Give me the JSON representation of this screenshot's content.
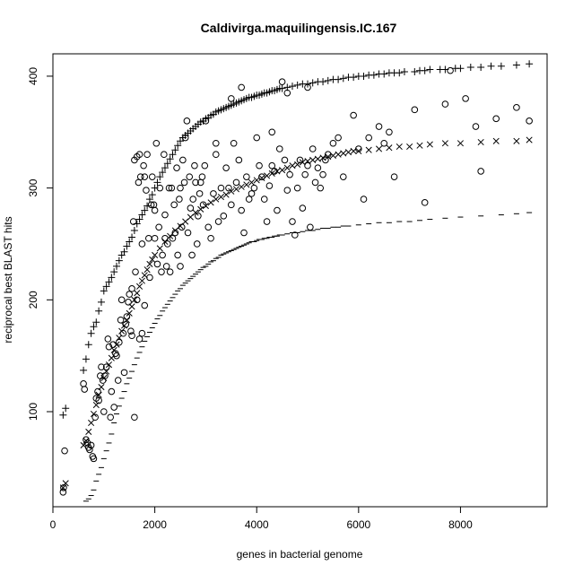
{
  "chart_data": {
    "type": "scatter",
    "title": "Caldivirga.maquilingensis.IC.167",
    "xlabel": "genes in bacterial genome",
    "ylabel": "reciprocal best BLAST hits",
    "xlim": [
      0,
      9700
    ],
    "ylim": [
      15,
      420
    ],
    "x_ticks": [
      0,
      2000,
      4000,
      6000,
      8000
    ],
    "y_ticks": [
      100,
      200,
      300,
      400
    ],
    "x_tick_labels": [
      "0",
      "2000",
      "4000",
      "6000",
      "8000"
    ],
    "y_tick_labels": [
      "100",
      "200",
      "300",
      "400"
    ],
    "grid": false,
    "legend": "none",
    "color": "#000000",
    "series": [
      {
        "marker": "plus",
        "x": [
          200,
          250,
          600,
          650,
          700,
          750,
          800,
          850,
          900,
          950,
          1000,
          1050,
          1100,
          1150,
          1200,
          1250,
          1300,
          1350,
          1400,
          1450,
          1500,
          1550,
          1600,
          1650,
          1700,
          1750,
          1800,
          1850,
          1900,
          1950,
          2000,
          2050,
          2100,
          2150,
          2200,
          2250,
          2300,
          2350,
          2400,
          2450,
          2500,
          2550,
          2600,
          2650,
          2700,
          2750,
          2800,
          2850,
          2900,
          2950,
          3000,
          3050,
          3100,
          3150,
          3200,
          3250,
          3300,
          3350,
          3400,
          3450,
          3500,
          3550,
          3600,
          3650,
          3700,
          3750,
          3800,
          3850,
          3900,
          3950,
          4000,
          4050,
          4100,
          4150,
          4200,
          4250,
          4300,
          4350,
          4400,
          4450,
          4500,
          4600,
          4700,
          4800,
          4900,
          5000,
          5100,
          5200,
          5300,
          5400,
          5500,
          5600,
          5700,
          5800,
          5900,
          6000,
          6100,
          6200,
          6300,
          6400,
          6500,
          6600,
          6700,
          6800,
          6900,
          7100,
          7200,
          7300,
          7400,
          7600,
          7700,
          7900,
          8000,
          8200,
          8400,
          8600,
          8800,
          9100,
          9350
        ],
        "y": [
          97,
          103,
          137,
          147,
          160,
          170,
          176,
          180,
          190,
          198,
          208,
          212,
          216,
          220,
          225,
          230,
          235,
          240,
          243,
          248,
          252,
          256,
          262,
          268,
          272,
          276,
          280,
          284,
          290,
          294,
          300,
          305,
          310,
          314,
          318,
          322,
          326,
          330,
          334,
          338,
          342,
          345,
          347,
          349,
          351,
          353,
          355,
          357,
          359,
          360,
          362,
          363,
          365,
          366,
          368,
          369,
          370,
          371,
          372,
          373,
          374,
          375,
          376,
          377,
          378,
          379,
          380,
          381,
          381,
          382,
          383,
          383,
          384,
          385,
          385,
          386,
          387,
          387,
          388,
          389,
          389,
          390,
          391,
          392,
          393,
          393,
          394,
          395,
          395,
          396,
          397,
          397,
          398,
          399,
          399,
          400,
          400,
          401,
          401,
          402,
          402,
          403,
          403,
          403,
          404,
          404,
          405,
          405,
          406,
          406,
          406,
          407,
          407,
          408,
          408,
          409,
          409,
          410,
          411
        ]
      },
      {
        "marker": "x",
        "x": [
          200,
          250,
          600,
          650,
          700,
          750,
          800,
          850,
          900,
          950,
          1000,
          1050,
          1100,
          1150,
          1200,
          1250,
          1300,
          1350,
          1400,
          1450,
          1500,
          1550,
          1600,
          1650,
          1700,
          1750,
          1800,
          1850,
          1900,
          1950,
          2000,
          2100,
          2200,
          2300,
          2400,
          2500,
          2600,
          2700,
          2800,
          2900,
          3000,
          3100,
          3200,
          3300,
          3400,
          3500,
          3600,
          3700,
          3800,
          3900,
          4000,
          4100,
          4200,
          4300,
          4400,
          4500,
          4600,
          4700,
          4800,
          4900,
          5000,
          5100,
          5200,
          5300,
          5400,
          5500,
          5600,
          5700,
          5800,
          5900,
          6000,
          6200,
          6400,
          6600,
          6800,
          7000,
          7200,
          7400,
          7700,
          8000,
          8400,
          8700,
          9100,
          9350
        ],
        "y": [
          32,
          36,
          70,
          74,
          82,
          90,
          98,
          106,
          115,
          122,
          130,
          136,
          142,
          148,
          155,
          160,
          166,
          172,
          177,
          182,
          188,
          194,
          200,
          206,
          212,
          217,
          222,
          227,
          232,
          236,
          240,
          246,
          252,
          257,
          262,
          266,
          270,
          274,
          278,
          281,
          284,
          287,
          290,
          292,
          294,
          297,
          299,
          301,
          303,
          305,
          307,
          309,
          311,
          313,
          315,
          316,
          318,
          320,
          321,
          323,
          324,
          325,
          326,
          327,
          328,
          329,
          330,
          331,
          332,
          333,
          333,
          334,
          335,
          336,
          337,
          337,
          338,
          339,
          340,
          340,
          341,
          342,
          342,
          343
        ]
      },
      {
        "marker": "circle",
        "x": [
          200,
          210,
          230,
          600,
          620,
          650,
          680,
          700,
          720,
          750,
          780,
          800,
          830,
          850,
          880,
          900,
          930,
          950,
          980,
          1000,
          1020,
          1050,
          1080,
          1100,
          1130,
          1150,
          1180,
          1200,
          1230,
          1250,
          1280,
          1300,
          1330,
          1350,
          1380,
          1400,
          1430,
          1450,
          1480,
          1500,
          1530,
          1550,
          1580,
          1600,
          1620,
          1650,
          1680,
          1700,
          1720,
          1750,
          1780,
          1800,
          1830,
          1850,
          1880,
          1900,
          1930,
          1950,
          1980,
          2000,
          2030,
          2050,
          2080,
          2100,
          2130,
          2150,
          2180,
          2200,
          2230,
          2250,
          2280,
          2300,
          2330,
          2350,
          2380,
          2400,
          2430,
          2450,
          2480,
          2500,
          2530,
          2550,
          2580,
          2600,
          2630,
          2650,
          2680,
          2700,
          2730,
          2750,
          2780,
          2800,
          2830,
          2850,
          2880,
          2900,
          2930,
          2950,
          2980,
          3000,
          3050,
          3100,
          3150,
          3200,
          3250,
          3300,
          3350,
          3400,
          3450,
          3500,
          3550,
          3600,
          3650,
          3700,
          3750,
          3800,
          3850,
          3900,
          3950,
          4000,
          4050,
          4100,
          4150,
          4200,
          4250,
          4300,
          4350,
          4400,
          4450,
          4500,
          4550,
          4600,
          4650,
          4700,
          4750,
          4800,
          4850,
          4900,
          4950,
          5000,
          5050,
          5100,
          5150,
          5200,
          5250,
          5300,
          5350,
          5400,
          5500,
          5600,
          5700,
          5900,
          6000,
          6100,
          6200,
          6400,
          6500,
          6600,
          6700,
          7100,
          7300,
          7700,
          7800,
          8100,
          8300,
          8400,
          8700,
          9100,
          9350,
          1600,
          1700,
          1800,
          2000,
          2200,
          2500,
          1650,
          1750,
          1550,
          3200,
          3500,
          3700,
          4300,
          4600,
          5000
        ],
        "y": [
          28,
          32,
          65,
          125,
          120,
          75,
          72,
          68,
          66,
          70,
          60,
          58,
          95,
          112,
          118,
          110,
          132,
          140,
          128,
          100,
          132,
          140,
          165,
          158,
          95,
          118,
          160,
          104,
          152,
          150,
          128,
          162,
          182,
          200,
          170,
          135,
          178,
          185,
          198,
          205,
          172,
          168,
          270,
          95,
          225,
          200,
          305,
          165,
          310,
          250,
          320,
          195,
          298,
          330,
          255,
          220,
          285,
          310,
          285,
          255,
          340,
          232,
          265,
          300,
          225,
          240,
          330,
          276,
          230,
          250,
          300,
          225,
          300,
          255,
          285,
          260,
          318,
          240,
          290,
          300,
          265,
          325,
          305,
          345,
          360,
          260,
          310,
          282,
          240,
          290,
          320,
          305,
          250,
          275,
          295,
          305,
          310,
          285,
          320,
          360,
          265,
          255,
          295,
          330,
          270,
          300,
          275,
          318,
          300,
          285,
          340,
          305,
          325,
          280,
          260,
          310,
          290,
          295,
          300,
          345,
          320,
          310,
          290,
          270,
          302,
          320,
          315,
          280,
          335,
          395,
          325,
          298,
          312,
          270,
          258,
          300,
          325,
          282,
          312,
          320,
          265,
          335,
          305,
          318,
          300,
          312,
          325,
          330,
          340,
          345,
          310,
          365,
          335,
          290,
          345,
          355,
          340,
          350,
          310,
          370,
          287,
          375,
          405,
          380,
          355,
          315,
          362,
          372,
          360,
          325,
          330,
          310,
          280,
          255,
          230,
          328,
          170,
          210,
          340,
          380,
          390,
          350,
          385,
          390
        ]
      },
      {
        "marker": "dash",
        "x": [
          650,
          700,
          750,
          800,
          850,
          900,
          950,
          1000,
          1050,
          1100,
          1150,
          1200,
          1250,
          1300,
          1350,
          1400,
          1450,
          1500,
          1550,
          1600,
          1650,
          1700,
          1750,
          1800,
          1850,
          1900,
          1950,
          2000,
          2050,
          2100,
          2150,
          2200,
          2250,
          2300,
          2350,
          2400,
          2450,
          2500,
          2550,
          2600,
          2650,
          2700,
          2750,
          2800,
          2850,
          2900,
          2950,
          3000,
          3050,
          3100,
          3150,
          3200,
          3250,
          3300,
          3350,
          3400,
          3450,
          3500,
          3550,
          3600,
          3650,
          3700,
          3750,
          3800,
          3850,
          3900,
          3950,
          4000,
          4050,
          4100,
          4150,
          4200,
          4250,
          4300,
          4350,
          4400,
          4450,
          4500,
          4600,
          4700,
          4800,
          4900,
          5000,
          5100,
          5200,
          5300,
          5400,
          5500,
          5600,
          5700,
          5800,
          6000,
          6200,
          6400,
          6600,
          6800,
          7000,
          7200,
          7400,
          7700,
          8000,
          8400,
          8800,
          9100,
          9350
        ],
        "y": [
          20,
          22,
          25,
          30,
          38,
          44,
          50,
          58,
          65,
          72,
          80,
          90,
          98,
          105,
          112,
          118,
          125,
          130,
          136,
          142,
          148,
          153,
          158,
          163,
          167,
          171,
          175,
          179,
          183,
          186,
          190,
          193,
          196,
          199,
          202,
          205,
          208,
          210,
          213,
          215,
          217,
          219,
          221,
          223,
          225,
          227,
          229,
          230,
          232,
          234,
          235,
          237,
          238,
          240,
          241,
          242,
          243,
          244,
          245,
          246,
          247,
          248,
          249,
          250,
          251,
          252,
          252,
          253,
          254,
          254,
          255,
          255,
          256,
          256,
          257,
          257,
          258,
          258,
          259,
          260,
          260,
          261,
          262,
          262,
          263,
          264,
          264,
          265,
          265,
          266,
          266,
          267,
          268,
          269,
          269,
          270,
          270,
          271,
          272,
          273,
          274,
          275,
          276,
          277,
          278
        ]
      }
    ]
  }
}
